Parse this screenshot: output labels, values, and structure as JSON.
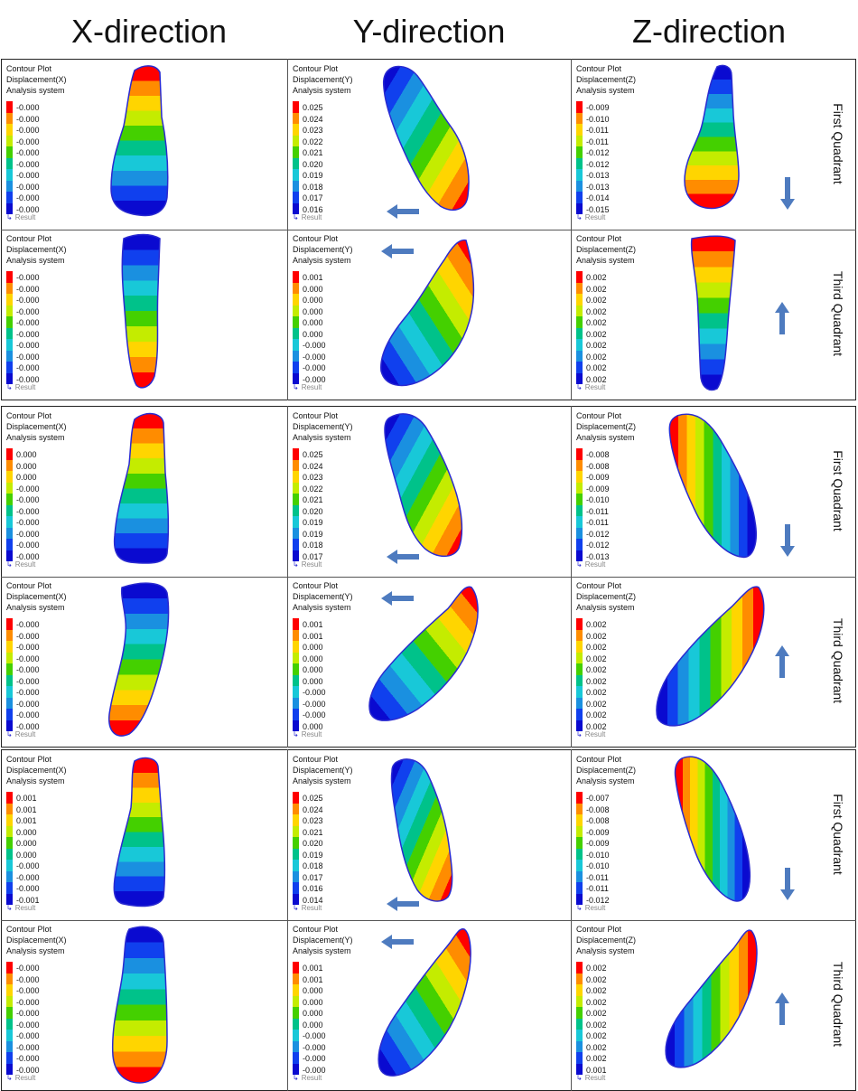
{
  "column_headers": [
    "X-direction",
    "Y-direction",
    "Z-direction"
  ],
  "legend_title_lines": [
    "Contour Plot",
    "Analysis system"
  ],
  "result_label": "Result",
  "row_labels": [
    "First Quadrant",
    "Third Quadrant",
    "First Quadrant",
    "Third Quadrant",
    "First Quadrant",
    "Third Quadrant"
  ],
  "colors": {
    "scale": [
      "#ff0000",
      "#ff8c00",
      "#ffd500",
      "#c4ec00",
      "#44d000",
      "#00c28a",
      "#18c8d8",
      "#1a90e0",
      "#1040ee",
      "#0a0ad0"
    ],
    "arrow": "#4e7bbf",
    "border": "#222222"
  },
  "panels": [
    [
      {
        "subtitle": "Displacement(X)",
        "ticks": [
          "-0.000",
          "-0.000",
          "-0.000",
          "-0.000",
          "-0.000",
          "-0.000",
          "-0.000",
          "-0.000",
          "-0.000",
          "-0.000"
        ]
      },
      {
        "subtitle": "Displacement(Y)",
        "ticks": [
          "0.025",
          "0.024",
          "0.023",
          "0.022",
          "0.021",
          "0.020",
          "0.019",
          "0.018",
          "0.017",
          "0.016"
        ]
      },
      {
        "subtitle": "Displacement(Z)",
        "ticks": [
          "-0.009",
          "-0.010",
          "-0.011",
          "-0.011",
          "-0.012",
          "-0.012",
          "-0.013",
          "-0.013",
          "-0.014",
          "-0.015"
        ]
      }
    ],
    [
      {
        "subtitle": "Displacement(X)",
        "ticks": [
          "-0.000",
          "-0.000",
          "-0.000",
          "-0.000",
          "-0.000",
          "-0.000",
          "-0.000",
          "-0.000",
          "-0.000",
          "-0.000"
        ]
      },
      {
        "subtitle": "Displacement(Y)",
        "ticks": [
          "0.001",
          "0.000",
          "0.000",
          "0.000",
          "0.000",
          "0.000",
          "-0.000",
          "-0.000",
          "-0.000",
          "-0.000"
        ]
      },
      {
        "subtitle": "Displacement(Z)",
        "ticks": [
          "0.002",
          "0.002",
          "0.002",
          "0.002",
          "0.002",
          "0.002",
          "0.002",
          "0.002",
          "0.002",
          "0.002"
        ]
      }
    ],
    [
      {
        "subtitle": "Displacement(X)",
        "ticks": [
          "0.000",
          "0.000",
          "0.000",
          "-0.000",
          "-0.000",
          "-0.000",
          "-0.000",
          "-0.000",
          "-0.000",
          "-0.000"
        ]
      },
      {
        "subtitle": "Displacement(Y)",
        "ticks": [
          "0.025",
          "0.024",
          "0.023",
          "0.022",
          "0.021",
          "0.020",
          "0.019",
          "0.019",
          "0.018",
          "0.017"
        ]
      },
      {
        "subtitle": "Displacement(Z)",
        "ticks": [
          "-0.008",
          "-0.008",
          "-0.009",
          "-0.009",
          "-0.010",
          "-0.011",
          "-0.011",
          "-0.012",
          "-0.012",
          "-0.013"
        ]
      }
    ],
    [
      {
        "subtitle": "Displacement(X)",
        "ticks": [
          "-0.000",
          "-0.000",
          "-0.000",
          "-0.000",
          "-0.000",
          "-0.000",
          "-0.000",
          "-0.000",
          "-0.000",
          "-0.000"
        ]
      },
      {
        "subtitle": "Displacement(Y)",
        "ticks": [
          "0.001",
          "0.001",
          "0.000",
          "0.000",
          "0.000",
          "0.000",
          "-0.000",
          "-0.000",
          "-0.000",
          "0.000"
        ]
      },
      {
        "subtitle": "Displacement(Z)",
        "ticks": [
          "0.002",
          "0.002",
          "0.002",
          "0.002",
          "0.002",
          "0.002",
          "0.002",
          "0.002",
          "0.002",
          "0.002"
        ]
      }
    ],
    [
      {
        "subtitle": "Displacement(X)",
        "ticks": [
          "0.001",
          "0.001",
          "0.001",
          "0.000",
          "0.000",
          "0.000",
          "-0.000",
          "-0.000",
          "-0.000",
          "-0.001"
        ]
      },
      {
        "subtitle": "Displacement(Y)",
        "ticks": [
          "0.025",
          "0.024",
          "0.023",
          "0.021",
          "0.020",
          "0.019",
          "0.018",
          "0.017",
          "0.016",
          "0.014"
        ]
      },
      {
        "subtitle": "Displacement(Z)",
        "ticks": [
          "-0.007",
          "-0.008",
          "-0.008",
          "-0.009",
          "-0.009",
          "-0.010",
          "-0.010",
          "-0.011",
          "-0.011",
          "-0.012"
        ]
      }
    ],
    [
      {
        "subtitle": "Displacement(X)",
        "ticks": [
          "-0.000",
          "-0.000",
          "-0.000",
          "-0.000",
          "-0.000",
          "-0.000",
          "-0.000",
          "-0.000",
          "-0.000",
          "-0.000"
        ]
      },
      {
        "subtitle": "Displacement(Y)",
        "ticks": [
          "0.001",
          "0.001",
          "0.000",
          "0.000",
          "0.000",
          "0.000",
          "-0.000",
          "-0.000",
          "-0.000",
          "-0.000"
        ]
      },
      {
        "subtitle": "Displacement(Z)",
        "ticks": [
          "0.002",
          "0.002",
          "0.002",
          "0.002",
          "0.002",
          "0.002",
          "0.002",
          "0.002",
          "0.002",
          "0.001"
        ]
      }
    ]
  ]
}
